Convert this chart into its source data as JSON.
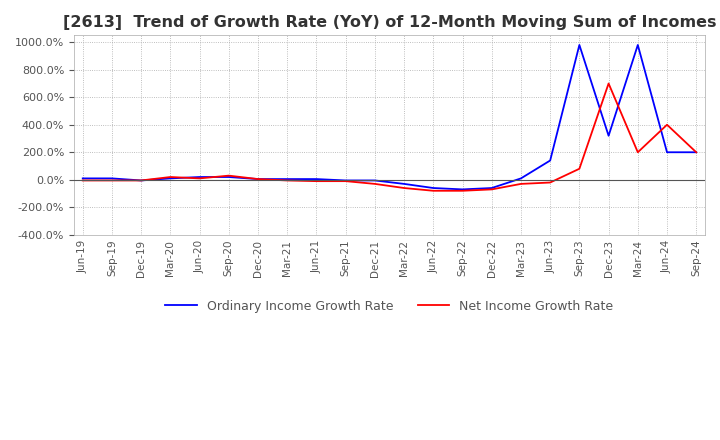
{
  "title": "[2613]  Trend of Growth Rate (YoY) of 12-Month Moving Sum of Incomes",
  "title_fontsize": 11.5,
  "ylim": [
    -400,
    1050
  ],
  "yticks": [
    -400,
    -200,
    0,
    200,
    400,
    600,
    800,
    1000
  ],
  "background_color": "#ffffff",
  "plot_bg_color": "#ffffff",
  "grid_color": "#aaaaaa",
  "ordinary_color": "#0000ff",
  "net_color": "#ff0000",
  "legend_labels": [
    "Ordinary Income Growth Rate",
    "Net Income Growth Rate"
  ],
  "x_labels": [
    "Jun-19",
    "Sep-19",
    "Dec-19",
    "Mar-20",
    "Jun-20",
    "Sep-20",
    "Dec-20",
    "Mar-21",
    "Jun-21",
    "Sep-21",
    "Dec-21",
    "Mar-22",
    "Jun-22",
    "Sep-22",
    "Dec-22",
    "Mar-23",
    "Jun-23",
    "Sep-23",
    "Dec-23",
    "Mar-24",
    "Jun-24",
    "Sep-24"
  ],
  "ordinary_income": [
    10,
    10,
    -5,
    10,
    20,
    20,
    5,
    5,
    5,
    -5,
    -5,
    -30,
    -60,
    -70,
    -60,
    10,
    140,
    980,
    320,
    980,
    200,
    200
  ],
  "net_income": [
    -5,
    -5,
    -5,
    20,
    10,
    30,
    5,
    -5,
    -10,
    -10,
    -30,
    -60,
    -80,
    -80,
    -70,
    -30,
    -20,
    80,
    700,
    200,
    400,
    200
  ]
}
